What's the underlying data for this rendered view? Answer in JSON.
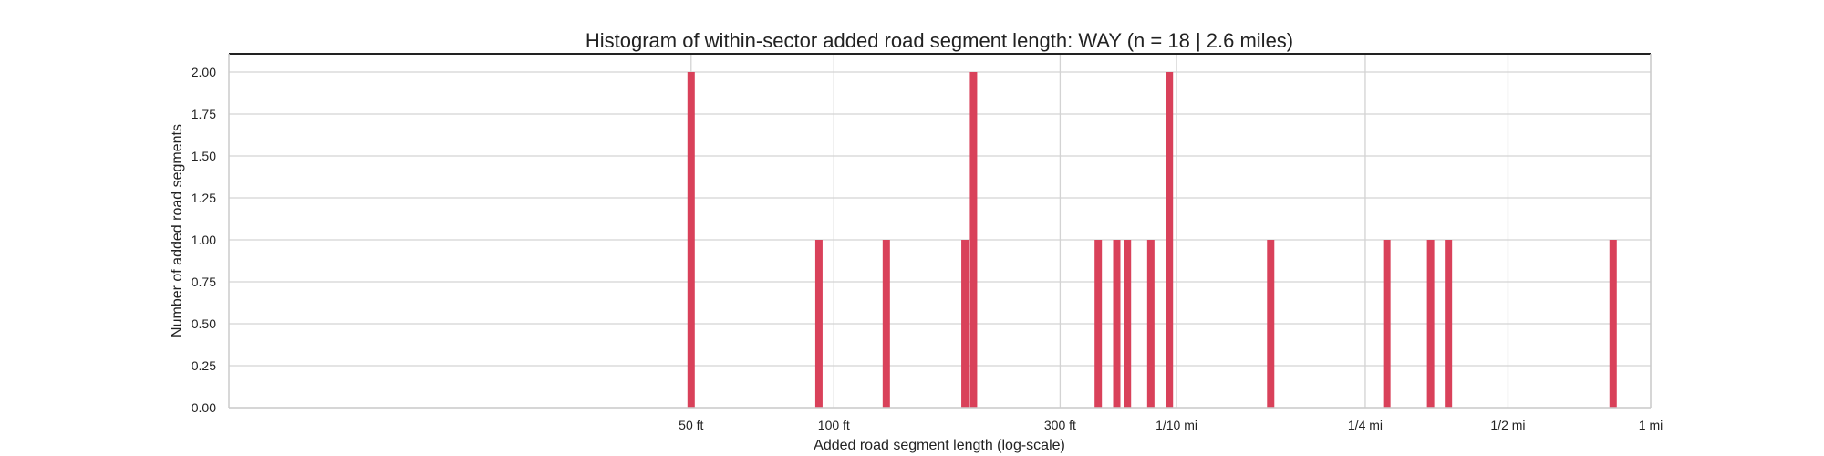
{
  "chart_data": {
    "type": "bar",
    "title": "Histogram of within-sector added road segment length: WAY (n = 18 | 2.6 miles)",
    "xlabel": "Added road segment length (log-scale)",
    "ylabel": "Number of added road segments",
    "x_scale": "log",
    "x_unit": "feet",
    "xlim": [
      5.3,
      5280
    ],
    "ylim": [
      0,
      2
    ],
    "grid": true,
    "bar_color": "#d9415a",
    "x_ticks": [
      {
        "value": 50,
        "label": "50 ft"
      },
      {
        "value": 100,
        "label": "100 ft"
      },
      {
        "value": 300,
        "label": "300 ft"
      },
      {
        "value": 528,
        "label": "1/10 mi"
      },
      {
        "value": 1320,
        "label": "1/4 mi"
      },
      {
        "value": 2640,
        "label": "1/2 mi"
      },
      {
        "value": 5280,
        "label": "1 mi"
      }
    ],
    "y_ticks": [
      "0.00",
      "0.25",
      "0.50",
      "0.75",
      "1.00",
      "1.25",
      "1.50",
      "1.75",
      "2.00"
    ],
    "bars": [
      {
        "x": 50,
        "count": 2
      },
      {
        "x": 93,
        "count": 1
      },
      {
        "x": 129,
        "count": 1
      },
      {
        "x": 189,
        "count": 1
      },
      {
        "x": 197,
        "count": 2
      },
      {
        "x": 361,
        "count": 1
      },
      {
        "x": 395,
        "count": 1
      },
      {
        "x": 416,
        "count": 1
      },
      {
        "x": 466,
        "count": 1
      },
      {
        "x": 510,
        "count": 2
      },
      {
        "x": 834,
        "count": 1
      },
      {
        "x": 1466,
        "count": 1
      },
      {
        "x": 1813,
        "count": 1
      },
      {
        "x": 1977,
        "count": 1
      },
      {
        "x": 4399,
        "count": 1
      }
    ]
  }
}
